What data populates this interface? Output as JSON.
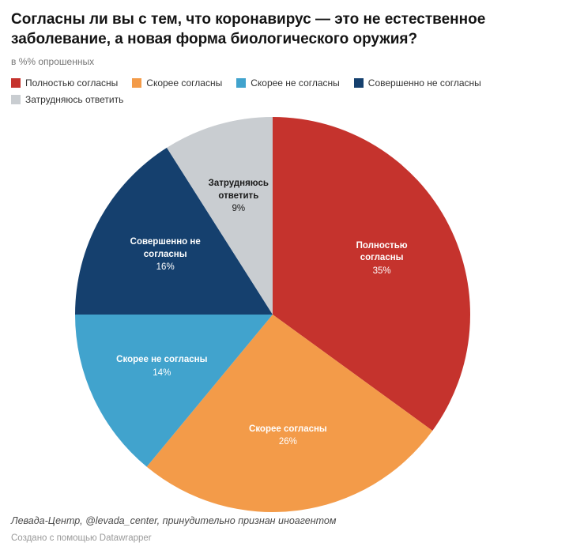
{
  "chart_data": {
    "type": "pie",
    "title": "Согласны ли вы с тем, что коронавирус — это не естественное заболевание, а новая форма биологического оружия?",
    "units_note": "в %% опрошенных",
    "legend_position": "top",
    "direction": "clockwise",
    "start_angle_deg": 0,
    "slices": [
      {
        "label": "Полностью согласны",
        "label_lines": [
          "Полностью",
          "согласны"
        ],
        "value": 35,
        "color": "#c5332d",
        "text_color": "#ffffff"
      },
      {
        "label": "Скорее согласны",
        "label_lines": [
          "Скорее согласны"
        ],
        "value": 26,
        "color": "#f39b49",
        "text_color": "#ffffff"
      },
      {
        "label": "Скорее не согласны",
        "label_lines": [
          "Скорее не согласны"
        ],
        "value": 14,
        "color": "#41a3cd",
        "text_color": "#ffffff"
      },
      {
        "label": "Совершенно не согласны",
        "label_lines": [
          "Совершенно не",
          "согласны"
        ],
        "value": 16,
        "color": "#15406e",
        "text_color": "#ffffff"
      },
      {
        "label": "Затрудняюсь ответить",
        "label_lines": [
          "Затрудняюсь",
          "ответить"
        ],
        "value": 9,
        "color": "#c9cdd1",
        "text_color": "#1a1a1a"
      }
    ]
  },
  "footer": {
    "source": "Левада-Центр, @levada_center, принудительно признан иноагентом",
    "attribution": "Создано с помощью Datawrapper"
  }
}
